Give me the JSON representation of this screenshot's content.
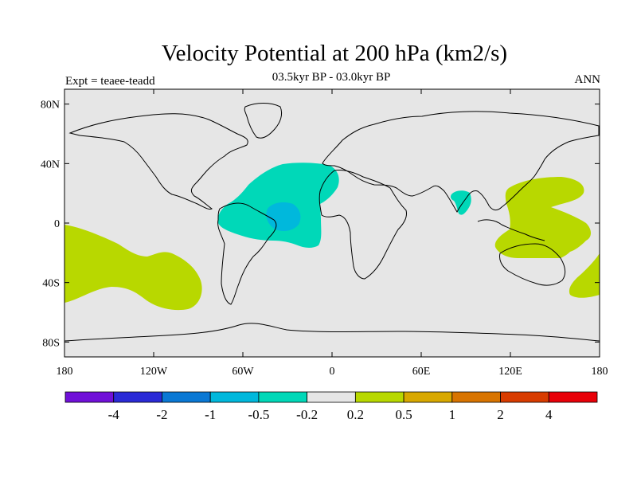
{
  "title": "Velocity Potential at 200 hPa (km2/s)",
  "subtitle": "03.5kyr BP - 03.0kyr BP",
  "expt_label": "Expt = teaee-teadd",
  "period_label": "ANN",
  "axes": {
    "lon_range": [
      -180,
      180
    ],
    "lat_range": [
      -90,
      90
    ],
    "lat_ticks": [
      {
        "value": 80,
        "label": "80N"
      },
      {
        "value": 40,
        "label": "40N"
      },
      {
        "value": 0,
        "label": "0"
      },
      {
        "value": -40,
        "label": "40S"
      },
      {
        "value": -80,
        "label": "80S"
      }
    ],
    "lon_ticks": [
      {
        "value": -180,
        "label": "180"
      },
      {
        "value": -120,
        "label": "120W"
      },
      {
        "value": -60,
        "label": "60W"
      },
      {
        "value": 0,
        "label": "0"
      },
      {
        "value": 60,
        "label": "60E"
      },
      {
        "value": 120,
        "label": "120E"
      },
      {
        "value": 180,
        "label": "180"
      }
    ]
  },
  "colorbar": {
    "colors": [
      "#7010d8",
      "#2a2ad6",
      "#0a78d4",
      "#00b8dc",
      "#00d8b8",
      "#e6e6e6",
      "#b8d800",
      "#d8a800",
      "#d87400",
      "#d83c00",
      "#e80008"
    ],
    "labels": [
      "-4",
      "-2",
      "-1",
      "-0.5",
      "-0.2",
      "0.2",
      "0.5",
      "1",
      "2",
      "4"
    ]
  },
  "colors": {
    "background": "#e6e6e6",
    "negative_light": "#00d8b8",
    "negative_medium": "#00b8dc",
    "positive_light": "#b8d800"
  }
}
